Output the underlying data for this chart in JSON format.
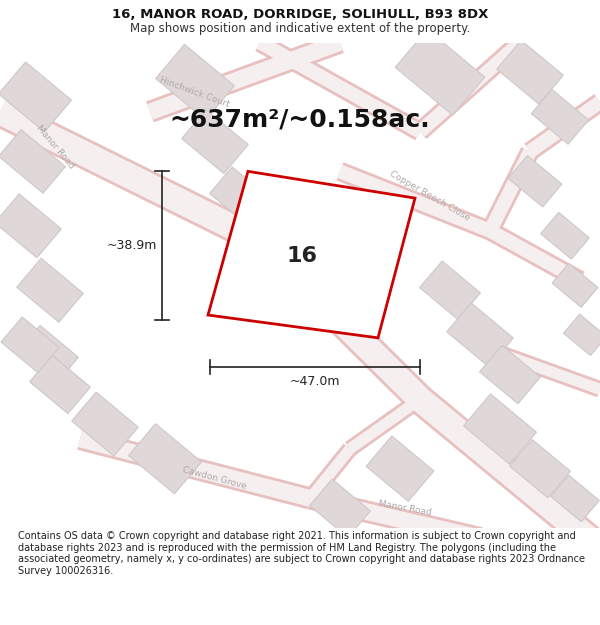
{
  "title": "16, MANOR ROAD, DORRIDGE, SOLIHULL, B93 8DX",
  "subtitle": "Map shows position and indicative extent of the property.",
  "area_label": "~637m²/~0.158ac.",
  "property_number": "16",
  "dim_width": "~47.0m",
  "dim_height": "~38.9m",
  "footer": "Contains OS data © Crown copyright and database right 2021. This information is subject to Crown copyright and database rights 2023 and is reproduced with the permission of HM Land Registry. The polygons (including the associated geometry, namely x, y co-ordinates) are subject to Crown copyright and database rights 2023 Ordnance Survey 100026316.",
  "bg_color": "#ffffff",
  "map_bg": "#f5efef",
  "road_stroke": "#e8c0c0",
  "road_fill": "#f5efef",
  "building_fill": "#e0d8d8",
  "building_edge": "#d0c8c8",
  "property_fill": "#ffffff",
  "property_edge": "#cc0000",
  "property_edge_width": 2.0,
  "dim_color": "#222222",
  "street_label_color": "#aaaaaa",
  "title_fontsize": 9.5,
  "subtitle_fontsize": 8.5,
  "area_fontsize": 18,
  "number_fontsize": 16,
  "footer_fontsize": 7.0
}
